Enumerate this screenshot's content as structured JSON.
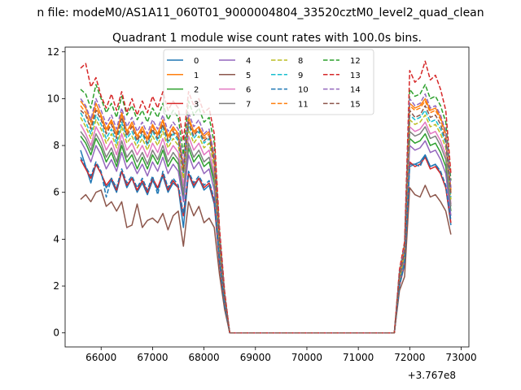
{
  "suptitle": "n file: modeM0/AS1A11_060T01_9000004804_33520cztM0_level2_quad_clean",
  "chart_data": {
    "type": "line",
    "title": "Quadrant 1 module wise count rates with 100.0s bins.",
    "xlabel": "",
    "ylabel": "",
    "x_offset_label": "+3.767e8",
    "xlim": [
      65300,
      73150
    ],
    "ylim": [
      -0.6,
      12.2
    ],
    "xticks": [
      66000,
      67000,
      68000,
      69000,
      70000,
      71000,
      72000,
      73000
    ],
    "yticks": [
      0,
      2,
      4,
      6,
      8,
      10,
      12
    ],
    "legend": {
      "position": "top-center",
      "columns": 4
    },
    "x": [
      65600,
      65700,
      65800,
      65900,
      66000,
      66100,
      66200,
      66300,
      66400,
      66500,
      66600,
      66700,
      66800,
      66900,
      67000,
      67100,
      67200,
      67300,
      67400,
      67500,
      67600,
      67700,
      67800,
      67900,
      68000,
      68100,
      68200,
      68300,
      68400,
      68500,
      71700,
      71800,
      71900,
      72000,
      72100,
      72200,
      72300,
      72400,
      72500,
      72600,
      72700,
      72800
    ],
    "series": [
      {
        "name": "0",
        "color": "#1f77b4",
        "dash": "solid",
        "values": [
          7.8,
          7.1,
          6.4,
          7.2,
          6.8,
          6.2,
          6.5,
          6.0,
          6.9,
          6.2,
          6.6,
          6.0,
          6.4,
          5.9,
          6.5,
          6.1,
          6.7,
          6.0,
          6.4,
          6.2,
          4.5,
          6.8,
          6.2,
          6.6,
          6.1,
          6.3,
          5.5,
          3.0,
          1.2,
          0,
          0,
          2.0,
          2.9,
          7.2,
          7.2,
          7.3,
          7.6,
          7.1,
          7.2,
          6.8,
          6.2,
          4.6
        ]
      },
      {
        "name": "1",
        "color": "#ff7f0e",
        "dash": "solid",
        "values": [
          9.9,
          9.6,
          9.0,
          9.8,
          9.3,
          8.7,
          9.1,
          8.5,
          9.4,
          8.6,
          9.0,
          8.4,
          8.8,
          8.3,
          8.9,
          8.5,
          9.1,
          8.4,
          8.8,
          8.5,
          7.1,
          9.2,
          8.6,
          8.8,
          8.4,
          8.6,
          7.5,
          4.0,
          1.6,
          0,
          0,
          2.4,
          3.5,
          9.8,
          9.6,
          9.7,
          10.0,
          9.5,
          9.6,
          9.2,
          8.5,
          6.0
        ]
      },
      {
        "name": "2",
        "color": "#2ca02c",
        "dash": "solid",
        "values": [
          8.4,
          8.1,
          7.6,
          8.3,
          7.9,
          7.3,
          7.7,
          7.1,
          8.0,
          7.3,
          7.6,
          7.0,
          7.5,
          7.0,
          7.6,
          7.2,
          7.8,
          7.1,
          7.5,
          7.2,
          5.8,
          7.9,
          7.3,
          7.6,
          7.1,
          7.3,
          6.4,
          3.4,
          1.4,
          0,
          0,
          2.2,
          3.2,
          8.3,
          8.1,
          8.2,
          8.5,
          8.0,
          8.1,
          7.7,
          7.1,
          5.2
        ]
      },
      {
        "name": "3",
        "color": "#d62728",
        "dash": "solid",
        "values": [
          7.4,
          7.0,
          6.6,
          7.2,
          6.8,
          6.3,
          6.6,
          6.1,
          6.9,
          6.3,
          6.6,
          6.1,
          6.5,
          6.0,
          6.6,
          6.2,
          6.8,
          6.1,
          6.5,
          6.2,
          5.0,
          6.8,
          6.3,
          6.6,
          6.2,
          6.4,
          5.6,
          3.0,
          1.2,
          0,
          0,
          2.0,
          3.0,
          7.3,
          7.1,
          7.2,
          7.5,
          7.0,
          7.1,
          6.8,
          6.2,
          4.7
        ]
      },
      {
        "name": "4",
        "color": "#9467bd",
        "dash": "solid",
        "values": [
          8.2,
          7.8,
          7.3,
          8.0,
          7.6,
          7.0,
          7.4,
          6.9,
          7.7,
          7.0,
          7.3,
          6.8,
          7.2,
          6.7,
          7.3,
          6.9,
          7.5,
          6.8,
          7.2,
          6.9,
          5.6,
          7.6,
          7.0,
          7.3,
          6.8,
          7.0,
          6.1,
          3.3,
          1.3,
          0,
          0,
          2.1,
          3.1,
          8.0,
          7.8,
          7.9,
          8.2,
          7.7,
          7.8,
          7.4,
          6.8,
          5.0
        ]
      },
      {
        "name": "5",
        "color": "#8c564b",
        "dash": "solid",
        "values": [
          5.7,
          5.9,
          5.6,
          6.0,
          6.1,
          5.4,
          5.6,
          5.2,
          5.6,
          4.5,
          4.6,
          5.5,
          4.5,
          4.8,
          4.9,
          4.7,
          5.1,
          4.4,
          5.0,
          5.2,
          3.7,
          5.6,
          5.0,
          5.4,
          4.7,
          4.9,
          4.5,
          2.5,
          1.0,
          0,
          0,
          1.8,
          2.4,
          6.2,
          5.9,
          5.8,
          6.3,
          5.8,
          5.9,
          5.6,
          5.2,
          4.2
        ]
      },
      {
        "name": "6",
        "color": "#e377c2",
        "dash": "solid",
        "values": [
          8.9,
          8.5,
          8.0,
          8.8,
          8.4,
          7.8,
          8.2,
          7.6,
          8.5,
          7.8,
          8.1,
          7.6,
          8.0,
          7.5,
          8.1,
          7.7,
          8.3,
          7.6,
          8.0,
          7.7,
          6.3,
          8.4,
          7.8,
          8.1,
          7.6,
          7.8,
          6.8,
          3.6,
          1.5,
          0,
          0,
          2.3,
          3.3,
          8.8,
          8.6,
          8.7,
          9.0,
          8.5,
          8.6,
          8.2,
          7.6,
          5.5
        ]
      },
      {
        "name": "7",
        "color": "#7f7f7f",
        "dash": "solid",
        "values": [
          8.6,
          8.3,
          7.8,
          8.5,
          8.1,
          7.5,
          7.9,
          7.3,
          8.2,
          7.5,
          7.8,
          7.3,
          7.7,
          7.2,
          7.8,
          7.4,
          8.0,
          7.3,
          7.7,
          7.4,
          6.0,
          8.1,
          7.5,
          7.8,
          7.3,
          7.5,
          6.6,
          3.5,
          1.4,
          0,
          0,
          2.2,
          3.3,
          8.6,
          8.4,
          8.5,
          8.8,
          8.3,
          8.4,
          8.0,
          7.4,
          5.4
        ]
      },
      {
        "name": "8",
        "color": "#bcbd22",
        "dash": "dashed",
        "values": [
          9.2,
          8.8,
          8.3,
          9.1,
          8.7,
          8.1,
          8.5,
          7.9,
          8.8,
          8.1,
          8.4,
          7.9,
          8.3,
          7.8,
          8.4,
          8.0,
          8.6,
          7.9,
          8.3,
          8.0,
          6.6,
          8.7,
          8.1,
          8.4,
          7.9,
          8.1,
          7.1,
          3.8,
          1.5,
          0,
          0,
          2.3,
          3.4,
          9.1,
          8.9,
          9.0,
          9.3,
          8.8,
          8.9,
          8.5,
          7.9,
          5.7
        ]
      },
      {
        "name": "9",
        "color": "#17becf",
        "dash": "dashed",
        "values": [
          9.4,
          9.0,
          8.5,
          9.3,
          8.9,
          8.3,
          8.7,
          8.1,
          9.0,
          8.3,
          8.6,
          8.1,
          8.5,
          8.0,
          8.6,
          8.2,
          8.8,
          8.1,
          8.5,
          8.2,
          6.8,
          8.9,
          8.3,
          8.6,
          8.1,
          8.3,
          7.3,
          3.9,
          1.6,
          0,
          0,
          2.4,
          3.5,
          9.3,
          9.1,
          9.2,
          9.5,
          9.0,
          9.1,
          8.7,
          8.1,
          5.8
        ]
      },
      {
        "name": "10",
        "color": "#1f77b4",
        "dash": "dashed",
        "values": [
          7.5,
          7.1,
          6.7,
          7.3,
          6.9,
          5.8,
          6.6,
          6.2,
          7.0,
          6.4,
          6.7,
          6.2,
          6.6,
          6.1,
          6.7,
          5.9,
          6.9,
          6.2,
          6.6,
          6.3,
          5.1,
          6.9,
          6.4,
          6.7,
          6.3,
          6.5,
          5.7,
          3.1,
          1.2,
          0,
          0,
          2.0,
          3.0,
          7.1,
          7.2,
          7.1,
          7.6,
          7.1,
          7.2,
          6.9,
          6.3,
          4.8
        ]
      },
      {
        "name": "11",
        "color": "#ff7f0e",
        "dash": "dashed",
        "values": [
          9.7,
          9.4,
          8.8,
          9.6,
          9.2,
          8.6,
          9.0,
          8.4,
          9.3,
          8.5,
          8.9,
          8.3,
          8.7,
          8.2,
          8.8,
          8.4,
          9.0,
          8.3,
          8.7,
          8.4,
          7.0,
          9.1,
          8.5,
          8.8,
          8.3,
          8.5,
          7.4,
          4.0,
          1.6,
          0,
          0,
          2.5,
          3.6,
          9.7,
          9.5,
          9.6,
          9.9,
          9.4,
          9.5,
          9.1,
          8.4,
          6.1
        ]
      },
      {
        "name": "12",
        "color": "#2ca02c",
        "dash": "dashed",
        "values": [
          10.4,
          10.2,
          9.6,
          10.6,
          10.0,
          9.4,
          9.8,
          9.2,
          10.1,
          9.3,
          9.7,
          9.1,
          9.5,
          9.0,
          9.6,
          9.2,
          9.8,
          9.1,
          9.5,
          9.2,
          7.6,
          9.9,
          9.3,
          9.6,
          9.0,
          9.2,
          8.1,
          4.3,
          1.7,
          0,
          0,
          2.6,
          3.8,
          10.4,
          10.1,
          10.2,
          10.6,
          10.0,
          10.1,
          9.7,
          9.0,
          6.5
        ]
      },
      {
        "name": "13",
        "color": "#d62728",
        "dash": "dashed",
        "values": [
          11.3,
          11.5,
          10.5,
          10.9,
          10.1,
          9.6,
          10.2,
          9.5,
          10.3,
          9.4,
          10.0,
          9.3,
          9.9,
          9.4,
          10.1,
          9.6,
          10.3,
          9.5,
          9.9,
          9.6,
          8.2,
          10.3,
          9.7,
          10.0,
          9.4,
          9.6,
          8.5,
          4.5,
          1.8,
          0,
          0,
          2.7,
          3.9,
          11.2,
          10.7,
          10.9,
          11.6,
          10.8,
          11.0,
          10.4,
          9.5,
          6.8
        ]
      },
      {
        "name": "14",
        "color": "#9467bd",
        "dash": "dashed",
        "values": [
          10.0,
          9.7,
          9.1,
          10.0,
          9.5,
          8.9,
          9.3,
          8.7,
          9.6,
          8.8,
          9.2,
          8.6,
          9.0,
          8.5,
          9.1,
          8.7,
          9.3,
          8.6,
          9.0,
          8.7,
          7.2,
          9.4,
          8.8,
          9.1,
          8.5,
          8.7,
          7.6,
          4.1,
          1.6,
          0,
          0,
          2.5,
          3.7,
          10.0,
          9.7,
          9.8,
          10.2,
          9.6,
          9.7,
          9.3,
          8.6,
          6.2
        ]
      },
      {
        "name": "15",
        "color": "#8c564b",
        "dash": "dashed",
        "values": [
          9.5,
          9.3,
          8.7,
          9.5,
          9.1,
          8.5,
          8.9,
          8.3,
          9.2,
          8.4,
          8.8,
          8.2,
          8.6,
          8.1,
          8.7,
          8.3,
          8.9,
          8.2,
          8.6,
          8.3,
          6.9,
          9.0,
          8.4,
          8.7,
          8.2,
          8.4,
          7.3,
          3.9,
          1.5,
          0,
          0,
          2.4,
          3.5,
          9.5,
          9.2,
          9.3,
          9.7,
          9.2,
          9.3,
          8.9,
          8.2,
          5.9
        ]
      }
    ]
  }
}
